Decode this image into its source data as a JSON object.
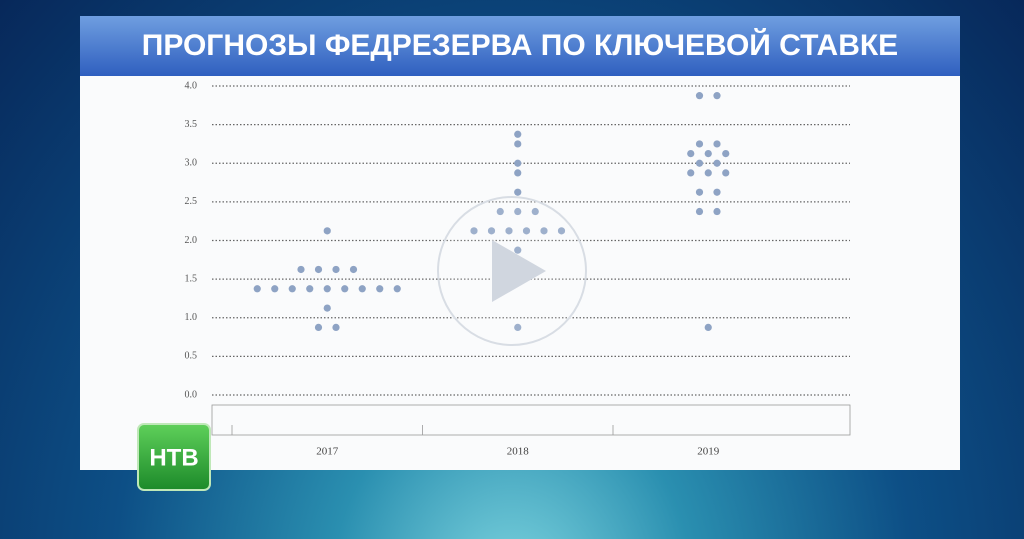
{
  "chart_data": {
    "type": "scatter",
    "title": "ПРОГНОЗЫ ФЕДРЕЗЕРВА ПО КЛЮЧЕВОЙ СТАВКЕ",
    "logo": "НТВ",
    "categories": [
      "2017",
      "2018",
      "2019"
    ],
    "values": [
      [
        2.125,
        1.625,
        1.625,
        1.625,
        1.625,
        1.375,
        1.375,
        1.375,
        1.375,
        1.375,
        1.375,
        1.375,
        1.375,
        1.375,
        1.125,
        0.875,
        0.875
      ],
      [
        3.375,
        3.25,
        3.0,
        2.875,
        2.625,
        2.375,
        2.375,
        2.375,
        2.125,
        2.125,
        2.125,
        2.125,
        2.125,
        2.125,
        1.875,
        0.875
      ],
      [
        3.875,
        3.875,
        3.25,
        3.25,
        3.125,
        3.125,
        3.125,
        3.0,
        3.0,
        2.875,
        2.875,
        2.875,
        2.625,
        2.625,
        2.375,
        2.375,
        0.875
      ]
    ],
    "color": "#8ea3c4",
    "ylim": [
      0,
      4
    ],
    "yticks": [
      {
        "value": 0,
        "label": "0.0"
      },
      0.5,
      {
        "value": 1,
        "label": "1.0"
      },
      1.5,
      {
        "value": 2,
        "label": "2.0"
      },
      2.5,
      {
        "value": 3,
        "label": "3.0"
      },
      3.5,
      {
        "value": 4,
        "label": "4.0"
      }
    ],
    "grid": true
  }
}
